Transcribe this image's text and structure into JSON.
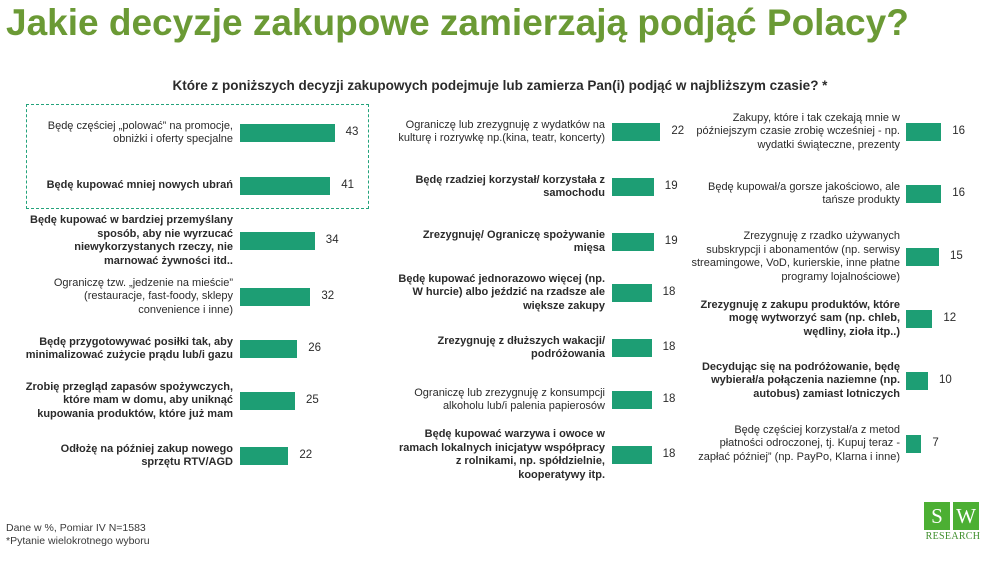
{
  "title": "Jakie decyzje zakupowe zamierzają podjąć Polacy?",
  "subtitle": "Które z poniższych decyzji zakupowych podejmuje lub zamierza Pan(i) podjąć w najbliższym czasie? *",
  "chart_data": {
    "type": "bar",
    "orientation": "horizontal",
    "unit": "%",
    "bar_color": "#1d9e74",
    "highlight_color": "#23a37b",
    "columns": [
      {
        "items": [
          {
            "label": "Będę częściej „polować” na promocje, obniżki i oferty specjalne",
            "value": 43,
            "bold": false,
            "highlighted": true
          },
          {
            "label": "Będę kupować mniej nowych ubrań",
            "value": 41,
            "bold": true,
            "highlighted": true
          },
          {
            "label": "Będę kupować w bardziej przemyślany sposób, aby nie wyrzucać niewykorzystanych rzeczy, nie marnować żywności itd..",
            "value": 34,
            "bold": true
          },
          {
            "label": "Ograniczę tzw. „jedzenie na mieście” (restauracje, fast-foody, sklepy convenience i inne)",
            "value": 32,
            "bold": false
          },
          {
            "label": "Będę przygotowywać posiłki tak, aby minimalizować zużycie prądu lub/i gazu",
            "value": 26,
            "bold": true
          },
          {
            "label": "Zrobię przegląd zapasów spożywczych, które mam w domu, aby uniknąć kupowania produktów, które już mam",
            "value": 25,
            "bold": true
          },
          {
            "label": "Odłożę na później zakup nowego sprzętu RTV/AGD",
            "value": 22,
            "bold": true
          }
        ]
      },
      {
        "items": [
          {
            "label": "Ograniczę lub zrezygnuję z wydatków na kulturę i rozrywkę np.(kina, teatr, koncerty)",
            "value": 22,
            "bold": false
          },
          {
            "label": "Będę rzadziej korzystał/ korzystała z samochodu",
            "value": 19,
            "bold": true
          },
          {
            "label": "Zrezygnuję/ Ograniczę spożywanie mięsa",
            "value": 19,
            "bold": true
          },
          {
            "label": "Będę kupować jednorazowo więcej (np. W hurcie) albo jeździć na rzadsze ale większe zakupy",
            "value": 18,
            "bold": true
          },
          {
            "label": "Zrezygnuję z dłuższych wakacji/ podróżowania",
            "value": 18,
            "bold": true
          },
          {
            "label": "Ograniczę lub zrezygnuję z konsumpcji alkoholu lub/i palenia papierosów",
            "value": 18,
            "bold": false
          },
          {
            "label": "Będę kupować warzywa i owoce w ramach lokalnych inicjatyw współpracy z rolnikami, np. spółdzielnie, kooperatywy itp.",
            "value": 18,
            "bold": true
          }
        ]
      },
      {
        "items": [
          {
            "label": "Zakupy, które i tak czekają mnie w późniejszym czasie zrobię wcześniej - np. wydatki świąteczne, prezenty",
            "value": 16,
            "bold": false
          },
          {
            "label": "Będę kupował/a gorsze jakościowo, ale tańsze produkty",
            "value": 16,
            "bold": false
          },
          {
            "label": "Zrezygnuję z rzadko używanych subskrypcji i abonamentów (np. serwisy streamingowe, VoD, kurierskie, inne płatne programy lojalnościowe)",
            "value": 15,
            "bold": false
          },
          {
            "label": "Zrezygnuję z zakupu produktów, które mogę wytworzyć sam (np. chleb, wędliny, zioła itp..)",
            "value": 12,
            "bold": true
          },
          {
            "label": "Decydując się na podróżowanie, będę wybierał/a połączenia naziemne (np. autobus) zamiast lotniczych",
            "value": 10,
            "bold": true
          },
          {
            "label": "Będę częściej korzystał/a z metod płatności odroczonej, tj. Kupuj teraz - zapłać później” (np. PayPo, Klarna i inne)",
            "value": 7,
            "bold": false
          }
        ]
      }
    ]
  },
  "footnote": {
    "line1": "Dane w %, Pomiar IV N=1583",
    "line2": "*Pytanie wielokrotnego wyboru"
  },
  "logo": {
    "letter1": "S",
    "letter2": "W",
    "text": "RESEARCH",
    "color": "#4caf33"
  }
}
